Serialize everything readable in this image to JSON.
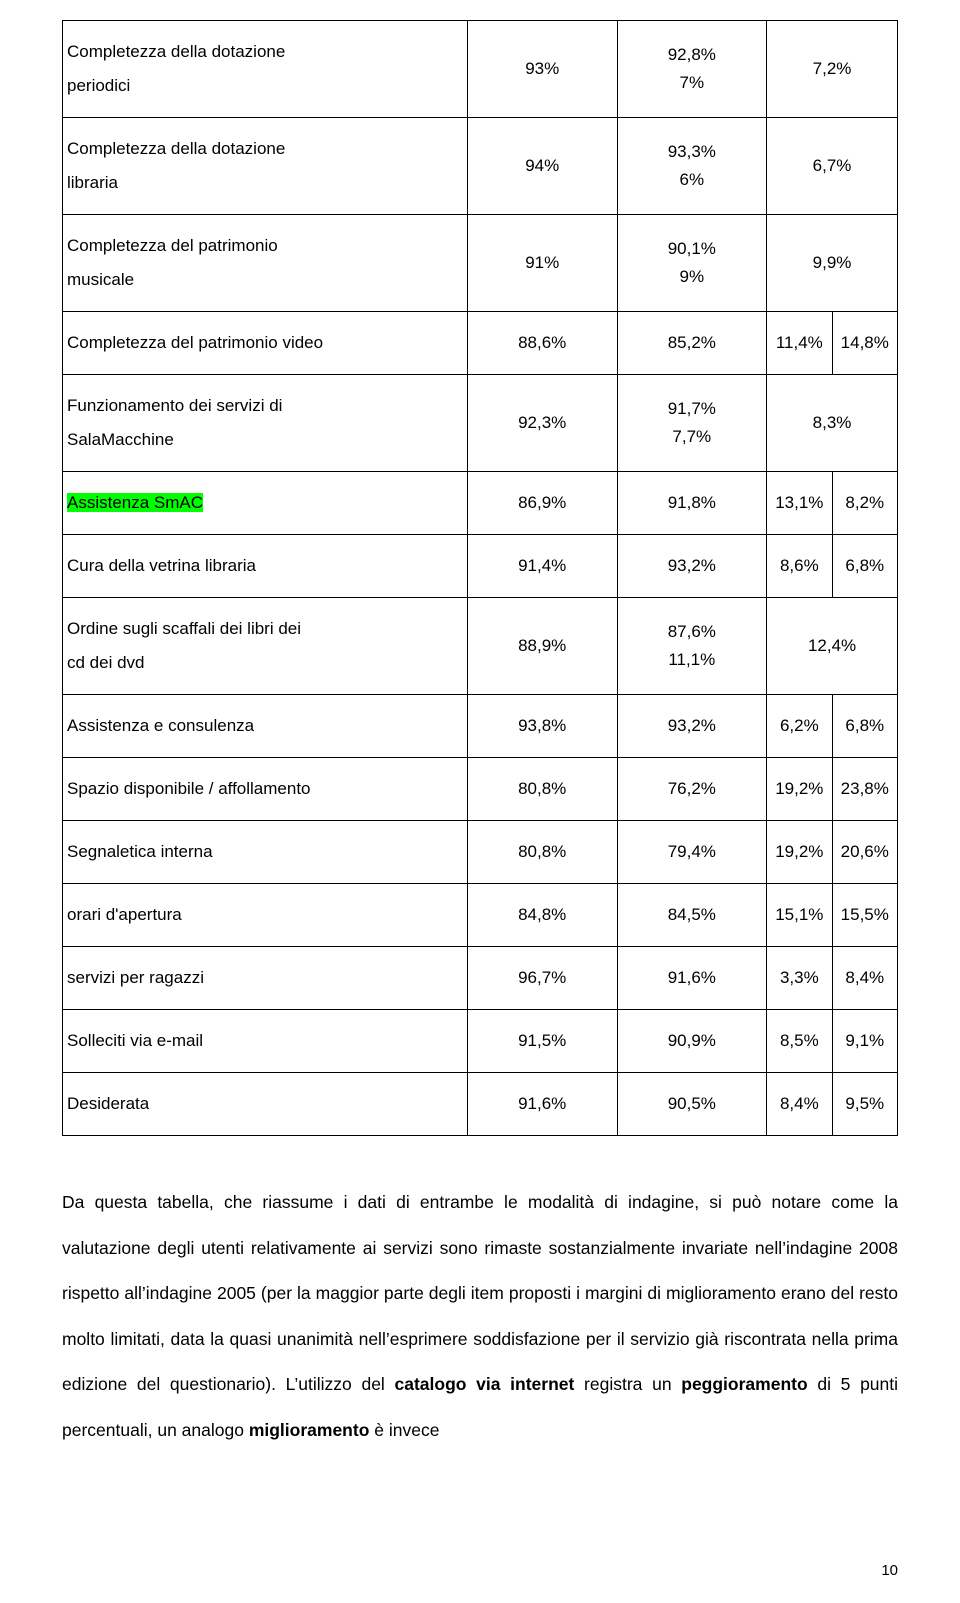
{
  "table": {
    "border_color": "#000000",
    "highlight_color": "#00ff00",
    "background_color": "#ffffff",
    "text_color": "#000000",
    "font_size_pt": 12,
    "col_widths_pct": [
      43,
      14.25,
      14.25,
      14.25,
      14.25
    ],
    "columns_logical": [
      "item",
      "val2008",
      "val2005",
      "delta2008",
      "delta2005"
    ],
    "rows": [
      {
        "label_top": "Completezza della dotazione",
        "label_bot": "periodici",
        "c1": "93%",
        "c2t": "92,8%",
        "c2b": "7%",
        "c3": "7,2%"
      },
      {
        "label_top": "Completezza della dotazione",
        "label_bot": "libraria",
        "c1": "94%",
        "c2t": "93,3%",
        "c2b": "6%",
        "c3": "6,7%"
      },
      {
        "label_top": "Completezza del patrimonio",
        "label_bot": "musicale",
        "c1": "91%",
        "c2t": "90,1%",
        "c2b": "9%",
        "c3": "9,9%"
      },
      {
        "label": "Completezza del patrimonio video",
        "c1": "88,6%",
        "c2": "85,2%",
        "c3": "11,4%",
        "c4": "14,8%"
      },
      {
        "label_top": "Funzionamento dei servizi di",
        "label_bot": "SalaMacchine",
        "c1": "92,3%",
        "c2t": "91,7%",
        "c2b": "7,7%",
        "c3": "8,3%"
      },
      {
        "label": "Assistenza SmAC",
        "highlight": true,
        "c1": "86,9%",
        "c2": "91,8%",
        "c3": "13,1%",
        "c4": "8,2%"
      },
      {
        "label": "Cura della vetrina libraria",
        "c1": "91,4%",
        "c2": "93,2%",
        "c3": "8,6%",
        "c4": "6,8%"
      },
      {
        "label_top": "Ordine sugli scaffali dei libri dei",
        "label_bot": "cd dei dvd",
        "c1": "88,9%",
        "c2t": "87,6%",
        "c2b": "11,1%",
        "c3": "12,4%"
      },
      {
        "label": "Assistenza e consulenza",
        "c1": "93,8%",
        "c2": "93,2%",
        "c3": "6,2%",
        "c4": "6,8%"
      },
      {
        "label": "Spazio disponibile / affollamento",
        "c1": "80,8%",
        "c2": "76,2%",
        "c3": "19,2%",
        "c4": "23,8%"
      },
      {
        "label": "Segnaletica interna",
        "c1": "80,8%",
        "c2": "79,4%",
        "c3": "19,2%",
        "c4": "20,6%"
      },
      {
        "label": "orari d'apertura",
        "c1": "84,8%",
        "c2": "84,5%",
        "c3": "15,1%",
        "c4": "15,5%"
      },
      {
        "label": "servizi per ragazzi",
        "c1": "96,7%",
        "c2": "91,6%",
        "c3": "3,3%",
        "c4": "8,4%"
      },
      {
        "label": "Solleciti via e-mail",
        "c1": "91,5%",
        "c2": "90,9%",
        "c3": "8,5%",
        "c4": "9,1%"
      },
      {
        "label": "Desiderata",
        "c1": "91,6%",
        "c2": "90,5%",
        "c3": "8,4%",
        "c4": "9,5%"
      }
    ]
  },
  "paragraph": {
    "font_size_pt": 12,
    "line_height": 2.6,
    "align": "justify",
    "runs": [
      {
        "t": "Da questa tabella, che riassume i dati di entrambe le modalità di indagine, si può notare come la valutazione degli utenti relativamente ai servizi sono rimaste sostanzialmente invariate nell’indagine 2008 rispetto all’indagine 2005 (per la maggior parte degli item proposti i margini di miglioramento erano del resto molto limitati, data la quasi unanimità nell’esprimere soddisfazione per il servizio già riscontrata nella prima edizione del questionario). L’utilizzo del "
      },
      {
        "t": "catalogo via internet",
        "bold": true
      },
      {
        "t": " registra un "
      },
      {
        "t": "peggioramento",
        "bold": true
      },
      {
        "t": " di 5 punti percentuali, un analogo "
      },
      {
        "t": "miglioramento",
        "bold": true
      },
      {
        "t": " è invece"
      }
    ]
  },
  "page_number": "10"
}
